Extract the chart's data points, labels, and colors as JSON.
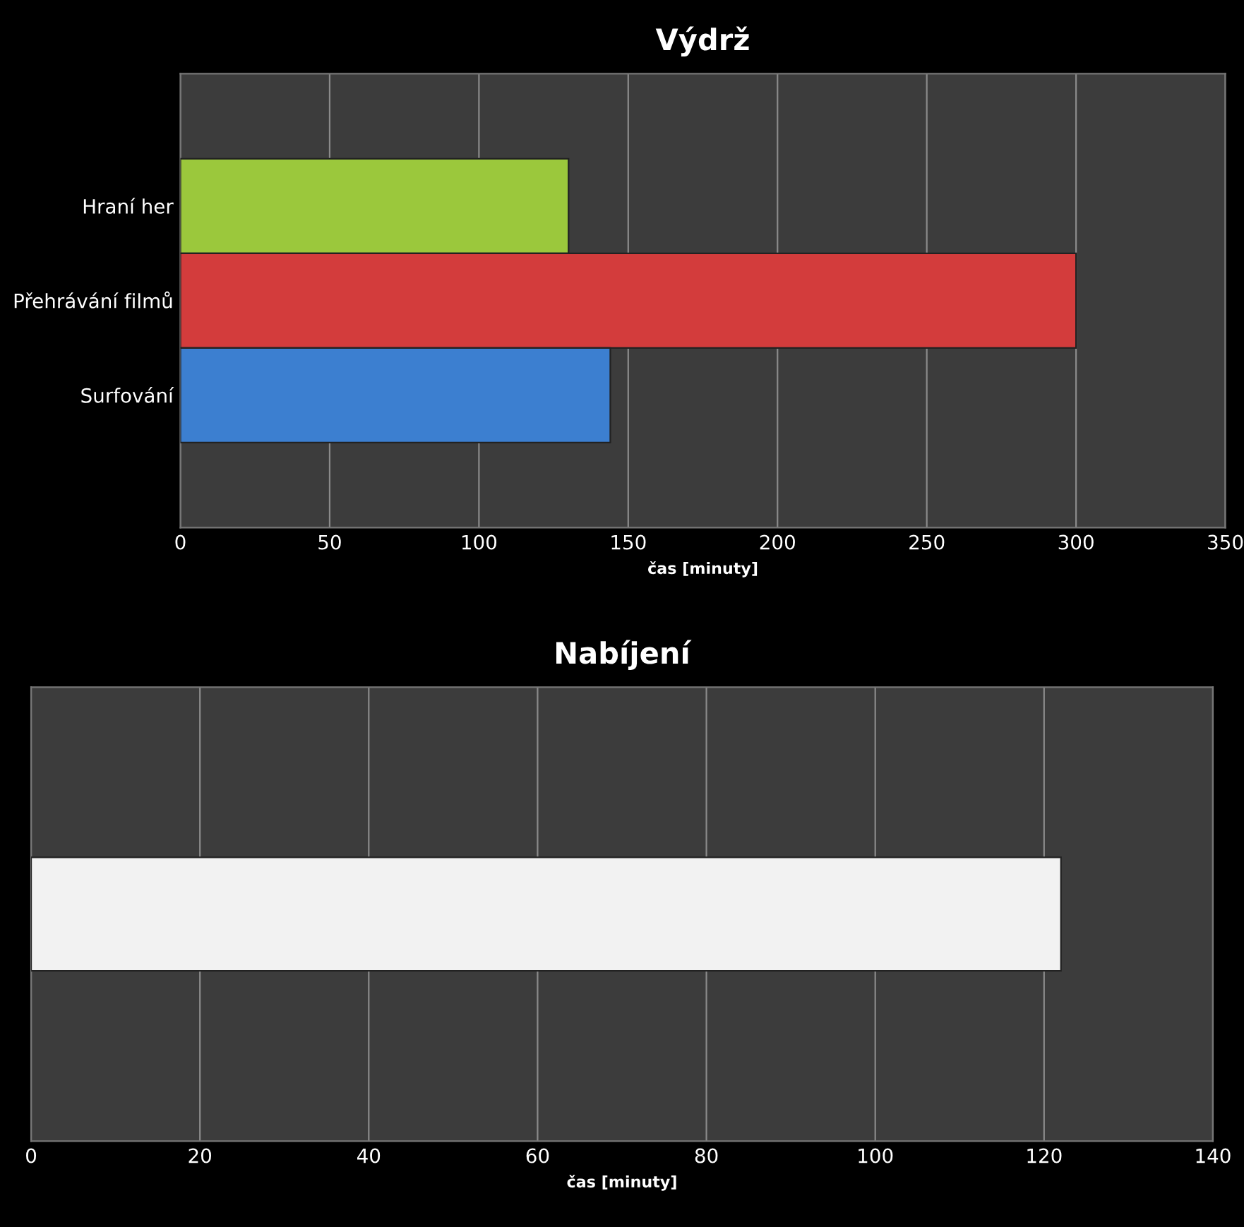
{
  "chart_data": [
    {
      "type": "bar",
      "orientation": "horizontal",
      "title": "Výdrž",
      "xlabel": "čas [minuty]",
      "categories": [
        "Hraní her",
        "Přehrávání filmů",
        "Surfování"
      ],
      "values": [
        130,
        300,
        144
      ],
      "colors": [
        "#9bc83c",
        "#d33c3c",
        "#3c7fd0"
      ],
      "xlim": [
        0,
        350
      ],
      "xticks": [
        0,
        50,
        100,
        150,
        200,
        250,
        300,
        350
      ],
      "grid": "x"
    },
    {
      "type": "bar",
      "orientation": "horizontal",
      "title": "Nabíjení",
      "xlabel": "čas [minuty]",
      "categories": [
        null
      ],
      "values": [
        122
      ],
      "colors": [
        "#f2f2f2"
      ],
      "xlim": [
        0,
        140
      ],
      "xticks": [
        0,
        20,
        40,
        60,
        80,
        100,
        120,
        140
      ],
      "grid": "x"
    }
  ]
}
